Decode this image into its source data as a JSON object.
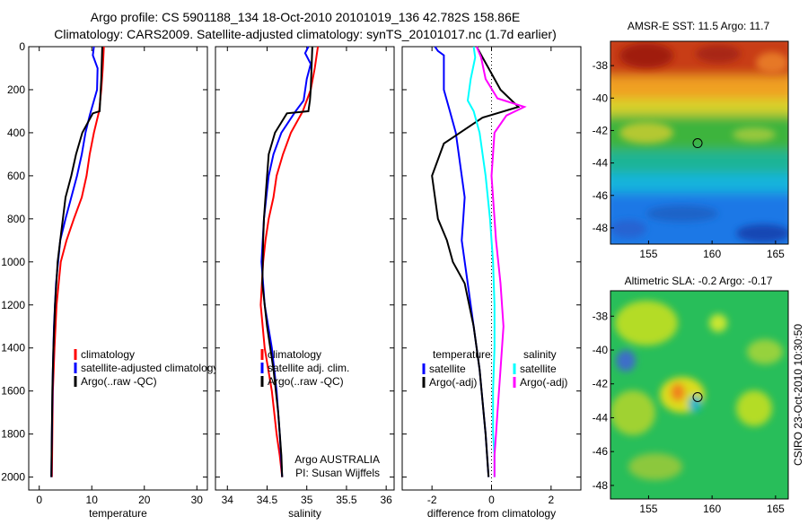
{
  "title": {
    "line1": "Argo profile: CS 5901188_134 18-Oct-2010 20101019_136 42.782S 158.86E",
    "line2": "Climatology: CARS2009. Satellite-adjusted climatology: synTS_20101017.nc (1.7d earlier)"
  },
  "side_text": "CSIRO 23-Oct-2010 10:30:50",
  "colors": {
    "red": "#ff0000",
    "blue": "#0000ff",
    "black": "#000000",
    "cyan": "#00ffff",
    "magenta": "#ff00ff"
  },
  "chart_data": [
    {
      "id": "temperature",
      "type": "line",
      "xlabel": "temperature",
      "xlim": [
        -2,
        32
      ],
      "ylim": [
        2060,
        0
      ],
      "xticks": [
        0,
        10,
        20,
        30
      ],
      "yticks": [
        0,
        200,
        400,
        600,
        800,
        1000,
        1200,
        1400,
        1600,
        1800,
        2000
      ],
      "legend": [
        "climatology",
        "satellite-adjusted climatology",
        "Argo(..raw -QC)"
      ],
      "series": [
        {
          "name": "climatology",
          "color": "red",
          "x": [
            12.3,
            12.1,
            11.8,
            11.4,
            10.4,
            9.6,
            9.0,
            8.1,
            6.6,
            5.2,
            4.1,
            3.3,
            2.9,
            2.6,
            2.5,
            2.4
          ],
          "y": [
            0,
            100,
            200,
            300,
            400,
            500,
            600,
            700,
            800,
            900,
            1000,
            1200,
            1400,
            1600,
            1800,
            2000
          ]
        },
        {
          "name": "satellite-adjusted climatology",
          "color": "blue",
          "x": [
            10.4,
            10.2,
            11.1,
            11.0,
            9.6,
            8.8,
            8.1,
            7.2,
            6.1,
            5.0,
            4.0,
            3.2,
            2.8,
            2.6,
            2.4,
            2.3
          ],
          "y": [
            0,
            40,
            100,
            200,
            320,
            400,
            500,
            600,
            700,
            800,
            900,
            1100,
            1300,
            1500,
            1800,
            2000
          ]
        },
        {
          "name": "Argo(..raw -QC)",
          "color": "black",
          "x": [
            12.0,
            11.8,
            11.6,
            11.5,
            10.2,
            8.2,
            7.0,
            6.1,
            5.0,
            4.0,
            3.5,
            3.0,
            2.7,
            2.5,
            2.3
          ],
          "y": [
            0,
            150,
            250,
            300,
            310,
            400,
            500,
            600,
            700,
            900,
            1000,
            1200,
            1400,
            1600,
            2000
          ]
        }
      ]
    },
    {
      "id": "salinity",
      "type": "line",
      "xlabel": "salinity",
      "xlim": [
        33.85,
        36.1
      ],
      "ylim": [
        2060,
        0
      ],
      "xticks": [
        34,
        34.5,
        35,
        35.5,
        36
      ],
      "xtick_labels": [
        "34",
        "34.5",
        "35",
        "35.5",
        "36"
      ],
      "yticks": [
        0,
        200,
        400,
        600,
        800,
        1000,
        1200,
        1400,
        1600,
        1800,
        2000
      ],
      "legend": [
        "climatology",
        "satellite adj. clim.",
        "Argo(..raw -QC)"
      ],
      "annotation": [
        "Argo AUSTRALIA",
        "PI: Susan Wijffels"
      ],
      "series": [
        {
          "name": "climatology",
          "color": "red",
          "x": [
            35.14,
            35.1,
            35.05,
            34.95,
            34.8,
            34.7,
            34.62,
            34.58,
            34.52,
            34.48,
            34.45,
            34.42,
            34.47,
            34.56,
            34.62,
            34.66,
            34.69
          ],
          "y": [
            0,
            100,
            200,
            300,
            400,
            500,
            600,
            700,
            800,
            900,
            1000,
            1200,
            1400,
            1600,
            1800,
            1900,
            2000
          ]
        },
        {
          "name": "satellite adj. clim.",
          "color": "blue",
          "x": [
            35.02,
            34.98,
            35.05,
            35.0,
            34.96,
            34.86,
            34.68,
            34.58,
            34.52,
            34.49,
            34.46,
            34.43,
            34.47,
            34.56,
            34.62,
            34.66,
            34.69
          ],
          "y": [
            0,
            30,
            80,
            150,
            250,
            300,
            400,
            500,
            600,
            700,
            800,
            1000,
            1200,
            1400,
            1600,
            1800,
            2000
          ]
        },
        {
          "name": "Argo(..raw -QC)",
          "color": "black",
          "x": [
            35.07,
            35.06,
            35.05,
            35.04,
            35.02,
            34.75,
            34.6,
            34.52,
            34.5,
            34.48,
            34.46,
            34.45,
            34.44,
            34.5,
            34.58,
            34.64,
            34.68,
            34.69
          ],
          "y": [
            0,
            100,
            200,
            250,
            300,
            310,
            400,
            500,
            600,
            700,
            800,
            900,
            1100,
            1300,
            1500,
            1700,
            1900,
            2000
          ]
        }
      ]
    },
    {
      "id": "difference",
      "type": "line",
      "xlabel": "difference from climatology",
      "xlim": [
        -3,
        3
      ],
      "ylim": [
        2060,
        0
      ],
      "xticks": [
        -2,
        0,
        2
      ],
      "yticks": [
        0,
        200,
        400,
        600,
        800,
        1000,
        1200,
        1400,
        1600,
        1800,
        2000
      ],
      "legend_left": {
        "title": "temperature",
        "items": [
          "satellite",
          "Argo(-adj)"
        ]
      },
      "legend_right": {
        "title": "salinity",
        "items": [
          "satellite",
          "Argo(-adj)"
        ]
      },
      "series": [
        {
          "name": "temperature satellite",
          "color": "blue",
          "x": [
            -1.9,
            -1.8,
            -1.6,
            -1.6,
            -1.4,
            -1.2,
            -1.1,
            -1.0,
            -0.9,
            -0.95,
            -1.0,
            -0.8,
            -0.6,
            -0.4,
            -0.2,
            -0.1
          ],
          "y": [
            0,
            20,
            40,
            200,
            300,
            400,
            500,
            600,
            700,
            800,
            900,
            1100,
            1300,
            1500,
            1800,
            2000
          ]
        },
        {
          "name": "temperature Argo(-adj)",
          "color": "black",
          "x": [
            -0.5,
            -0.3,
            -0.1,
            0.3,
            0.9,
            -0.3,
            -1.6,
            -2.0,
            -1.8,
            -1.5,
            -1.3,
            -0.9,
            -0.6,
            -0.4,
            -0.2,
            -0.1
          ],
          "y": [
            0,
            50,
            100,
            200,
            280,
            330,
            450,
            600,
            800,
            900,
            1000,
            1100,
            1300,
            1500,
            1800,
            2000
          ]
        },
        {
          "name": "salinity satellite",
          "color": "cyan",
          "x": [
            -0.6,
            -0.55,
            -0.7,
            -0.8,
            -0.6,
            -0.4,
            -0.2,
            -0.05,
            0.05,
            0.1,
            0.1,
            0.05,
            0.05,
            0.1,
            0.1
          ],
          "y": [
            0,
            50,
            150,
            250,
            300,
            400,
            600,
            800,
            1000,
            1200,
            1400,
            1600,
            1800,
            1900,
            2000
          ]
        },
        {
          "name": "salinity Argo(-adj)",
          "color": "magenta",
          "x": [
            -0.5,
            -0.35,
            -0.2,
            0.2,
            1.1,
            0.5,
            0.1,
            0.0,
            0.15,
            0.3,
            0.4,
            0.3,
            0.2,
            0.15,
            0.1,
            0.1
          ],
          "y": [
            0,
            50,
            150,
            240,
            280,
            320,
            400,
            600,
            900,
            1100,
            1300,
            1500,
            1700,
            1800,
            1900,
            2000
          ]
        }
      ]
    },
    {
      "id": "sst-map",
      "type": "heatmap",
      "title": "AMSR-E SST: 11.5 Argo: 11.7",
      "xlim": [
        152,
        166
      ],
      "ylim": [
        -49,
        -36.5
      ],
      "xticks": [
        155,
        160,
        165
      ],
      "yticks": [
        -38,
        -40,
        -42,
        -44,
        -46,
        -48
      ],
      "marker": {
        "lon": 158.86,
        "lat": -42.78
      },
      "bands": [
        {
          "lat_top": -36.5,
          "lat_bottom": -38.8,
          "color": "#c83c14"
        },
        {
          "lat_top": -38.8,
          "lat_bottom": -40.2,
          "color": "#f0a023"
        },
        {
          "lat_top": -40.2,
          "lat_bottom": -41.2,
          "color": "#d8d22a"
        },
        {
          "lat_top": -41.2,
          "lat_bottom": -43.4,
          "color": "#3cb43c"
        },
        {
          "lat_top": -43.4,
          "lat_bottom": -44.8,
          "color": "#1eb496"
        },
        {
          "lat_top": -44.8,
          "lat_bottom": -46.0,
          "color": "#12b4dc"
        },
        {
          "lat_top": -46.0,
          "lat_bottom": -49.0,
          "color": "#1e78e6"
        }
      ]
    },
    {
      "id": "sla-map",
      "type": "heatmap",
      "title": "Altimetric SLA: -0.2 Argo: -0.17",
      "xlim": [
        152,
        166
      ],
      "ylim": [
        -48.8,
        -36.5
      ],
      "xticks": [
        155,
        160,
        165
      ],
      "yticks": [
        -38,
        -40,
        -42,
        -44,
        -46,
        -48
      ],
      "marker": {
        "lon": 158.86,
        "lat": -42.78
      },
      "background": "#28be5a"
    }
  ]
}
